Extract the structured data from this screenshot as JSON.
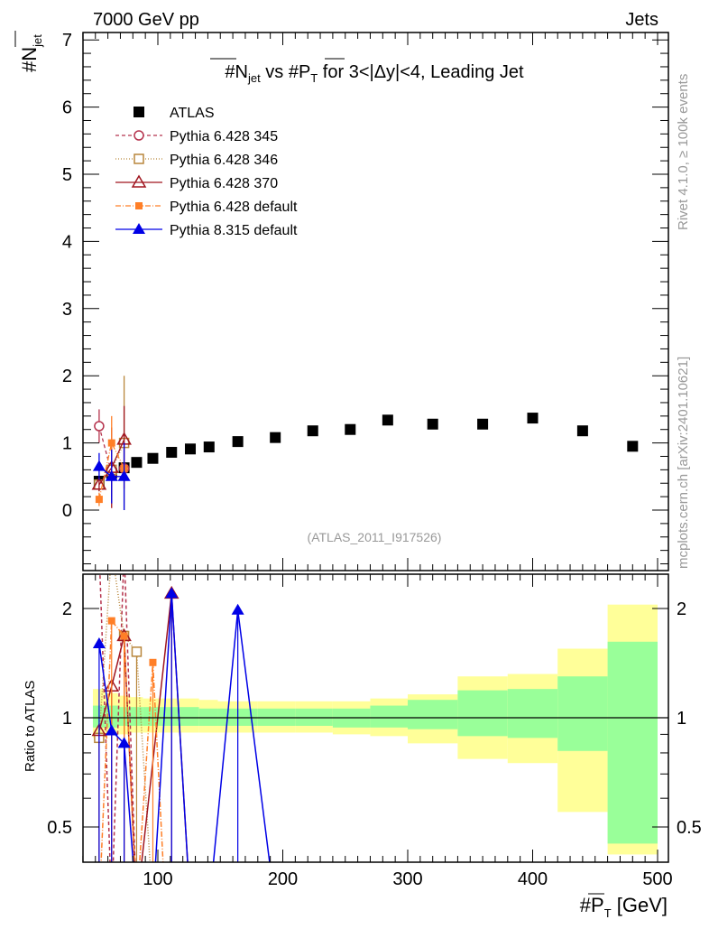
{
  "header": {
    "left": "7000 GeV pp",
    "right": "Jets"
  },
  "side_labels": {
    "rivet": "Rivet 4.1.0, ≥ 100k events",
    "mcplots": "mcplots.cern.ch [arXiv:2401.10621]"
  },
  "analysis_id": "(ATLAS_2011_I917526)",
  "chart_data": [
    {
      "type": "scatter",
      "title": "#N_jet vs #P_T for 3<|Δy|<4, Leading Jet",
      "ylabel": "#N_jet",
      "xlabel": "#P_T [GeV]",
      "xlim": [
        40,
        509
      ],
      "ylim": [
        -0.9,
        7.1
      ],
      "yticks": [
        "0",
        "1",
        "2",
        "3",
        "4",
        "5",
        "6",
        "7"
      ],
      "legend_position": "top-left",
      "series": [
        {
          "name": "ATLAS",
          "color": "#000000",
          "marker": "filled-square",
          "dash": "none",
          "points": [
            [
              53,
              0.43
            ],
            [
              63,
              0.55
            ],
            [
              73,
              0.63
            ],
            [
              83,
              0.71
            ],
            [
              96,
              0.77
            ],
            [
              111,
              0.86
            ],
            [
              126,
              0.91
            ],
            [
              141,
              0.94
            ],
            [
              164,
              1.02
            ],
            [
              194,
              1.08
            ],
            [
              224,
              1.18
            ],
            [
              254,
              1.2
            ],
            [
              284,
              1.34
            ],
            [
              320,
              1.28
            ],
            [
              360,
              1.28
            ],
            [
              400,
              1.37
            ],
            [
              440,
              1.18
            ],
            [
              480,
              0.95
            ]
          ]
        },
        {
          "name": "Pythia 6.428 345",
          "color": "#b5334d",
          "marker": "open-circle",
          "dash": "4,3",
          "points": [
            [
              53,
              1.25,
              0.25
            ],
            [
              63,
              0.55,
              0.3
            ],
            [
              73,
              0.62,
              0.3
            ]
          ]
        },
        {
          "name": "Pythia 6.428 346",
          "color": "#b8863b",
          "marker": "open-square",
          "dash": "1,2",
          "points": [
            [
              53,
              0.38,
              0.1
            ],
            [
              63,
              0.6,
              0.4
            ],
            [
              73,
              1.0,
              1.0
            ]
          ]
        },
        {
          "name": "Pythia 6.428 370",
          "color": "#a0151f",
          "marker": "open-triangle",
          "dash": "none",
          "points": [
            [
              53,
              0.38,
              0.1
            ],
            [
              63,
              0.63,
              0.6
            ],
            [
              73,
              1.05,
              0.5
            ]
          ]
        },
        {
          "name": "Pythia 6.428 default",
          "color": "#ff7f27",
          "marker": "filled-square-small",
          "dash": "6,2,1,2",
          "points": [
            [
              53,
              0.16,
              0.1
            ],
            [
              63,
              1.0,
              0.4
            ],
            [
              73,
              0.62,
              0.3
            ]
          ]
        },
        {
          "name": "Pythia 8.315 default",
          "color": "#0000e6",
          "marker": "filled-triangle",
          "dash": "none",
          "points": [
            [
              53,
              0.65,
              0.2
            ],
            [
              63,
              0.5,
              0.4
            ],
            [
              73,
              0.5,
              0.5
            ]
          ]
        }
      ]
    },
    {
      "type": "line",
      "ylabel": "Ratio to ATLAS",
      "xlabel": "#P_T [GeV]",
      "yscale": "log",
      "ylim": [
        0.4,
        2.48
      ],
      "yticks": [
        "0.5",
        "1",
        "2"
      ],
      "xticks": [
        "100",
        "200",
        "300",
        "400",
        "500"
      ],
      "bands": {
        "edges": [
          48,
          58,
          68,
          78,
          88,
          103,
          118,
          133,
          148,
          180,
          210,
          240,
          270,
          300,
          340,
          380,
          420,
          460,
          500
        ],
        "green": [
          [
            1.08,
            0.94
          ],
          [
            1.08,
            0.94
          ],
          [
            1.07,
            0.95
          ],
          [
            1.07,
            0.95
          ],
          [
            1.07,
            0.95
          ],
          [
            1.07,
            0.95
          ],
          [
            1.07,
            0.95
          ],
          [
            1.06,
            0.95
          ],
          [
            1.06,
            0.95
          ],
          [
            1.06,
            0.95
          ],
          [
            1.06,
            0.95
          ],
          [
            1.06,
            0.94
          ],
          [
            1.08,
            0.94
          ],
          [
            1.12,
            0.93
          ],
          [
            1.19,
            0.89
          ],
          [
            1.2,
            0.88
          ],
          [
            1.3,
            0.81
          ],
          [
            1.62,
            0.45
          ]
        ],
        "yellow": [
          [
            1.2,
            0.88
          ],
          [
            1.17,
            0.9
          ],
          [
            1.15,
            0.9
          ],
          [
            1.14,
            0.91
          ],
          [
            1.13,
            0.91
          ],
          [
            1.13,
            0.91
          ],
          [
            1.13,
            0.91
          ],
          [
            1.12,
            0.91
          ],
          [
            1.11,
            0.91
          ],
          [
            1.11,
            0.91
          ],
          [
            1.11,
            0.91
          ],
          [
            1.11,
            0.9
          ],
          [
            1.13,
            0.89
          ],
          [
            1.16,
            0.85
          ],
          [
            1.3,
            0.77
          ],
          [
            1.32,
            0.75
          ],
          [
            1.55,
            0.55
          ],
          [
            2.05,
            0.42
          ]
        ]
      },
      "series": [
        {
          "name": "Pythia 6.428 345",
          "points": [
            [
              53,
              2.9
            ],
            [
              63,
              0.3
            ],
            [
              73,
              2.9
            ],
            [
              83,
              0.3
            ]
          ]
        },
        {
          "name": "Pythia 6.428 346",
          "points": [
            [
              53,
              0.88
            ],
            [
              63,
              2.9
            ],
            [
              73,
              1.68
            ],
            [
              83,
              1.52
            ],
            [
              96,
              0.3
            ]
          ]
        },
        {
          "name": "Pythia 6.428 370",
          "points": [
            [
              53,
              0.92
            ],
            [
              63,
              1.22
            ],
            [
              73,
              1.68
            ],
            [
              83,
              0.3
            ],
            [
              111,
              2.2
            ],
            [
              126,
              0.3
            ]
          ]
        },
        {
          "name": "Pythia 6.428 default",
          "points": [
            [
              53,
              0.3
            ],
            [
              63,
              1.85
            ],
            [
              73,
              1.68
            ],
            [
              83,
              0.3
            ],
            [
              96,
              1.42
            ],
            [
              106,
              0.3
            ]
          ]
        },
        {
          "name": "Pythia 8.315 default",
          "points": [
            [
              53,
              1.6
            ],
            [
              63,
              0.92
            ],
            [
              73,
              0.85
            ],
            [
              83,
              0.3
            ],
            [
              96,
              0.3
            ],
            [
              111,
              2.2
            ],
            [
              126,
              0.3
            ],
            [
              141,
              0.3
            ],
            [
              164,
              1.98
            ],
            [
              194,
              0.3
            ]
          ]
        }
      ]
    }
  ]
}
